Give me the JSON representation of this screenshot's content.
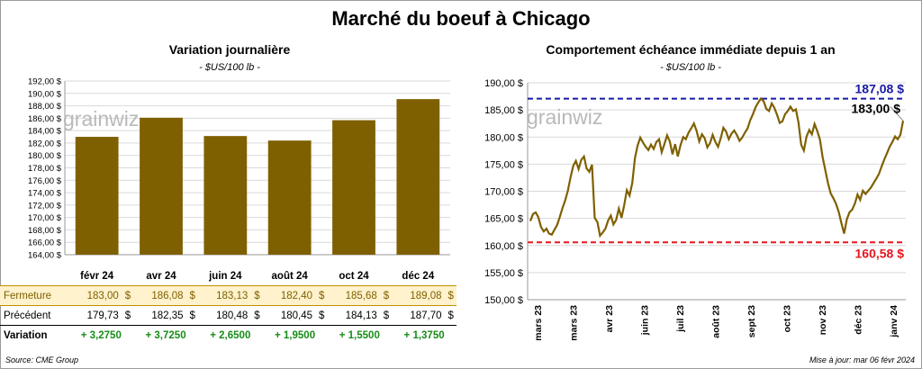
{
  "title": "Marché du boeuf à Chicago",
  "logo_text": "grainwiz",
  "source": "Source: CME Group",
  "updated": "Mise à jour: mar 06 févr 2024",
  "chart_data": [
    {
      "type": "bar",
      "title": "Variation journalière",
      "subtitle": "- $US/100 lb -",
      "categories": [
        "févr 24",
        "avr 24",
        "juin 24",
        "août 24",
        "oct 24",
        "déc 24"
      ],
      "values": [
        183.0,
        186.08,
        183.13,
        182.4,
        185.68,
        189.08
      ],
      "ylim": [
        164,
        192
      ],
      "ytick_step": 2,
      "ytick_labels": [
        "164,00 $",
        "166,00 $",
        "168,00 $",
        "170,00 $",
        "172,00 $",
        "174,00 $",
        "176,00 $",
        "178,00 $",
        "180,00 $",
        "182,00 $",
        "184,00 $",
        "186,00 $",
        "188,00 $",
        "190,00 $",
        "192,00 $"
      ],
      "bar_color": "#7f6000",
      "grid": true,
      "table": {
        "rows": [
          {
            "label": "Fermeture",
            "values": [
              "183,00",
              "186,08",
              "183,13",
              "182,40",
              "185,68",
              "189,08"
            ],
            "currency": "$"
          },
          {
            "label": "Précédent",
            "values": [
              "179,73",
              "182,35",
              "180,48",
              "180,45",
              "184,13",
              "187,70"
            ],
            "currency": "$"
          },
          {
            "label": "Variation",
            "values": [
              "+ 3,2750",
              "+ 3,7250",
              "+ 2,6500",
              "+ 1,9500",
              "+ 1,5500",
              "+ 1,3750"
            ]
          }
        ]
      }
    },
    {
      "type": "line",
      "title": "Comportement  échéance immédiate depuis 1 an",
      "subtitle": "- $US/100 lb -",
      "ylim": [
        150,
        190
      ],
      "ytick_step": 5,
      "ytick_labels": [
        "150,00 $",
        "155,00 $",
        "160,00 $",
        "165,00 $",
        "170,00 $",
        "175,00 $",
        "180,00 $",
        "185,00 $",
        "190,00 $"
      ],
      "x_labels": [
        "mars 23",
        "mars 23",
        "avr 23",
        "juin 23",
        "juil 23",
        "août 23",
        "sept 23",
        "oct 23",
        "nov 23",
        "déc 23",
        "janv 24"
      ],
      "x_label_positions": [
        0,
        0.1,
        0.2,
        0.3,
        0.4,
        0.5,
        0.6,
        0.7,
        0.8,
        0.9,
        1.0
      ],
      "series": [
        {
          "color": "#7f6000",
          "values": [
            164.5,
            165.8,
            166.1,
            165.2,
            163.4,
            162.6,
            163.1,
            162.2,
            162.0,
            162.9,
            163.8,
            165.3,
            166.9,
            168.3,
            170.1,
            172.6,
            174.7,
            175.6,
            174.1,
            175.8,
            176.4,
            174.2,
            173.6,
            174.9,
            165.1,
            164.3,
            161.8,
            162.4,
            163.1,
            164.6,
            165.5,
            163.9,
            164.7,
            166.8,
            165.1,
            167.4,
            170.2,
            169.2,
            171.5,
            176.1,
            178.4,
            179.9,
            179.0,
            178.2,
            177.6,
            178.6,
            177.8,
            179.1,
            179.6,
            177.2,
            178.7,
            180.3,
            179.2,
            176.8,
            178.7,
            176.4,
            178.5,
            180.0,
            179.6,
            180.8,
            181.6,
            182.5,
            181.1,
            179.2,
            180.5,
            179.8,
            178.1,
            178.9,
            180.4,
            179.1,
            178.2,
            179.8,
            181.7,
            181.0,
            179.6,
            180.6,
            181.2,
            180.4,
            179.3,
            179.9,
            180.8,
            181.6,
            183.1,
            184.2,
            185.5,
            186.4,
            187.1,
            186.6,
            185.2,
            184.8,
            186.2,
            185.4,
            184.1,
            182.6,
            182.9,
            184.2,
            184.8,
            185.6,
            184.8,
            185.1,
            182.7,
            178.6,
            177.5,
            180.1,
            181.3,
            180.5,
            182.4,
            181.1,
            179.5,
            176.3,
            173.9,
            171.5,
            169.6,
            168.7,
            167.7,
            166.2,
            164.1,
            162.2,
            164.8,
            166.1,
            166.6,
            167.7,
            169.4,
            168.4,
            170.1,
            169.5,
            170.1,
            170.7,
            171.5,
            172.3,
            173.2,
            174.6,
            175.9,
            177.0,
            178.2,
            179.1,
            180.1,
            179.6,
            180.4,
            183.0
          ],
          "annotation_high": "187,08 $",
          "annotation_last": "183,00 $"
        }
      ],
      "ref_lines": [
        {
          "value": 187.08,
          "label": "187,08 $",
          "color": "#1a1aa6"
        },
        {
          "value": 160.58,
          "label": "160,58 $",
          "color": "#e6161f"
        }
      ],
      "grid": true
    }
  ]
}
